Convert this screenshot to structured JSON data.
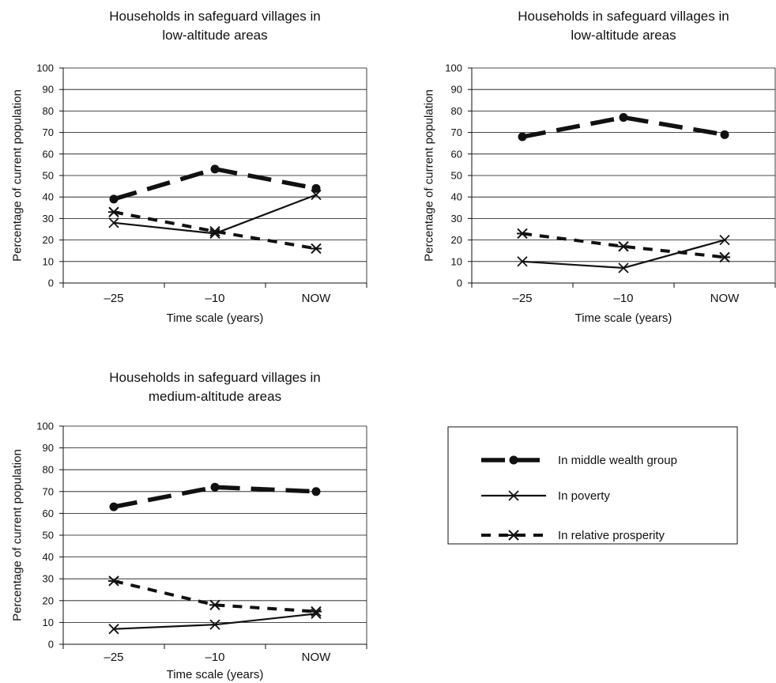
{
  "chart_data": [
    {
      "type": "line",
      "title_lines": [
        "Households in safeguard villages in",
        "low-altitude areas"
      ],
      "xlabel": "Time scale (years)",
      "ylabel": "Percentage of current population",
      "categories": [
        "–25",
        "–10",
        "NOW"
      ],
      "ylim": [
        0,
        100
      ],
      "yticks": [
        "0",
        "10",
        "20",
        "30",
        "40",
        "50",
        "60",
        "70",
        "80",
        "90",
        "100"
      ],
      "grid": true,
      "series": [
        {
          "name": "In middle wealth group",
          "values": [
            39,
            53,
            44
          ]
        },
        {
          "name": "In poverty",
          "values": [
            28,
            23,
            41
          ]
        },
        {
          "name": "In relative prosperity",
          "values": [
            33,
            24,
            16
          ]
        }
      ]
    },
    {
      "type": "line",
      "title_lines": [
        "Households in safeguard villages in",
        "low-altitude areas"
      ],
      "xlabel": "Time scale (years)",
      "ylabel": "Percentage of current population",
      "categories": [
        "–25",
        "–10",
        "NOW"
      ],
      "ylim": [
        0,
        100
      ],
      "yticks": [
        "0",
        "10",
        "20",
        "30",
        "40",
        "50",
        "60",
        "70",
        "80",
        "90",
        "100"
      ],
      "grid": true,
      "series": [
        {
          "name": "In middle wealth group",
          "values": [
            68,
            77,
            69
          ]
        },
        {
          "name": "In poverty",
          "values": [
            10,
            7,
            20
          ]
        },
        {
          "name": "In relative prosperity",
          "values": [
            23,
            17,
            12
          ]
        }
      ]
    },
    {
      "type": "line",
      "title_lines": [
        "Households in safeguard villages in",
        "medium-altitude areas"
      ],
      "xlabel": "Time scale (years)",
      "ylabel": "Percentage of current population",
      "categories": [
        "–25",
        "–10",
        "NOW"
      ],
      "ylim": [
        0,
        100
      ],
      "yticks": [
        "0",
        "10",
        "20",
        "30",
        "40",
        "50",
        "60",
        "70",
        "80",
        "90",
        "100"
      ],
      "grid": true,
      "series": [
        {
          "name": "In middle wealth group",
          "values": [
            63,
            72,
            70
          ]
        },
        {
          "name": "In poverty",
          "values": [
            7,
            9,
            14
          ]
        },
        {
          "name": "In relative prosperity",
          "values": [
            29,
            18,
            15
          ]
        }
      ]
    }
  ],
  "legend": {
    "items": [
      {
        "label": "In middle wealth group",
        "style": "middle"
      },
      {
        "label": "In poverty",
        "style": "poverty"
      },
      {
        "label": "In relative prosperity",
        "style": "prosperity"
      }
    ]
  },
  "colors": {
    "ink": "#111111",
    "grid": "#111111",
    "background": "#ffffff"
  }
}
